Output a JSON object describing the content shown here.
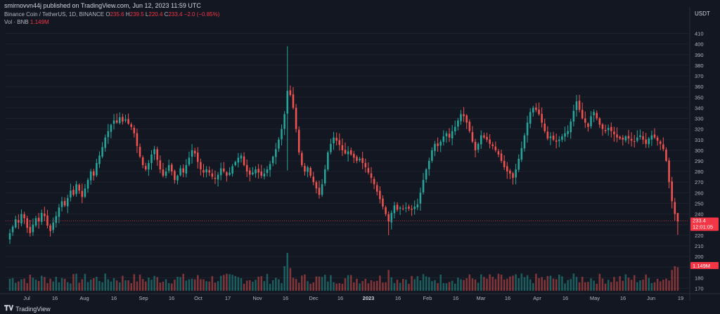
{
  "header": {
    "publisher_line": "smirnovvn44j published on TradingView.com, Jun 12, 2023 11:59 UTC",
    "symbol_title": "Binance Coin / TetherUS, 1D, BINANCE",
    "ohlc": {
      "o_label": "O",
      "o_value": "235.6",
      "h_label": "H",
      "h_value": "239.5",
      "l_label": "L",
      "l_value": "220.4",
      "c_label": "C",
      "c_value": "233.4",
      "change": "−2.0 (−0.85%)"
    },
    "volume_label": "Vol · BNB",
    "volume_value": "1.149M"
  },
  "price_axis": {
    "currency": "USDT"
  },
  "price_tag": {
    "price": "233.4",
    "countdown": "12:01:05",
    "color": "#f23645"
  },
  "volume_tag": {
    "value": "1.149M",
    "color": "#f23645"
  },
  "footer": {
    "brand": "TradingView"
  },
  "colors": {
    "up": "#26a69a",
    "down": "#ef5350",
    "background": "#131722",
    "grid": "#1e222d"
  },
  "chart_data": {
    "type": "candlestick",
    "interval": "1D",
    "ylim": [
      165,
      415
    ],
    "y_ticks": [
      170,
      180,
      190,
      200,
      210,
      220,
      230,
      240,
      250,
      260,
      270,
      280,
      290,
      300,
      310,
      320,
      330,
      340,
      350,
      360,
      370,
      380,
      390,
      400,
      410
    ],
    "x_tick_labels": [
      "Jul",
      "16",
      "Aug",
      "16",
      "Sep",
      "16",
      "Oct",
      "17",
      "Nov",
      "16",
      "Dec",
      "16",
      "2023",
      "16",
      "Feb",
      "16",
      "Mar",
      "16",
      "Apr",
      "16",
      "May",
      "16",
      "Jun",
      "19"
    ],
    "close_series": [
      222,
      228,
      235,
      232,
      240,
      236,
      227,
      222,
      230,
      236,
      233,
      241,
      238,
      229,
      224,
      232,
      238,
      246,
      252,
      248,
      255,
      262,
      258,
      268,
      262,
      256,
      264,
      272,
      280,
      276,
      288,
      295,
      303,
      312,
      318,
      324,
      328,
      326,
      331,
      327,
      329,
      325,
      322,
      316,
      304,
      294,
      286,
      282,
      288,
      296,
      301,
      291,
      282,
      276,
      280,
      286,
      280,
      272,
      276,
      283,
      279,
      286,
      293,
      300,
      297,
      289,
      282,
      279,
      282,
      279,
      275,
      273,
      277,
      283,
      280,
      276,
      279,
      285,
      289,
      293,
      295,
      286,
      280,
      277,
      279,
      282,
      279,
      276,
      278,
      282,
      287,
      294,
      301,
      310,
      320,
      334,
      356,
      352,
      340,
      320,
      298,
      286,
      280,
      284,
      276,
      270,
      264,
      258,
      268,
      282,
      298,
      306,
      312,
      309,
      305,
      300,
      297,
      299,
      296,
      293,
      290,
      292,
      288,
      284,
      279,
      274,
      268,
      261,
      254,
      247,
      240,
      233,
      241,
      248,
      244,
      246,
      245,
      246,
      245,
      244,
      247,
      249,
      260,
      272,
      282,
      290,
      300,
      306,
      304,
      308,
      313,
      316,
      312,
      318,
      322,
      328,
      334,
      332,
      326,
      318,
      308,
      300,
      306,
      314,
      312,
      310,
      306,
      304,
      300,
      296,
      290,
      284,
      280,
      278,
      274,
      282,
      292,
      302,
      314,
      326,
      336,
      340,
      338,
      334,
      326,
      318,
      311,
      313,
      310,
      308,
      310,
      313,
      316,
      318,
      327,
      337,
      346,
      338,
      330,
      326,
      322,
      332,
      336,
      330,
      324,
      320,
      318,
      321,
      318,
      315,
      312,
      311,
      310,
      313,
      311,
      309,
      308,
      312,
      314,
      310,
      306,
      311,
      314,
      312,
      309,
      306,
      301,
      290,
      270,
      252,
      240,
      233
    ],
    "wick_extremes": [
      {
        "date": "Nov 8",
        "high": 398,
        "low": 281
      },
      {
        "date": "Dec 17",
        "low": 220
      },
      {
        "date": "Jun 12",
        "high": 239.5,
        "low": 220.4
      }
    ],
    "last": {
      "open": 235.6,
      "high": 239.5,
      "low": 220.4,
      "close": 233.4,
      "change": -2.0,
      "change_pct": -0.85
    },
    "volume": {
      "last_value_millions": 1.149
    }
  }
}
